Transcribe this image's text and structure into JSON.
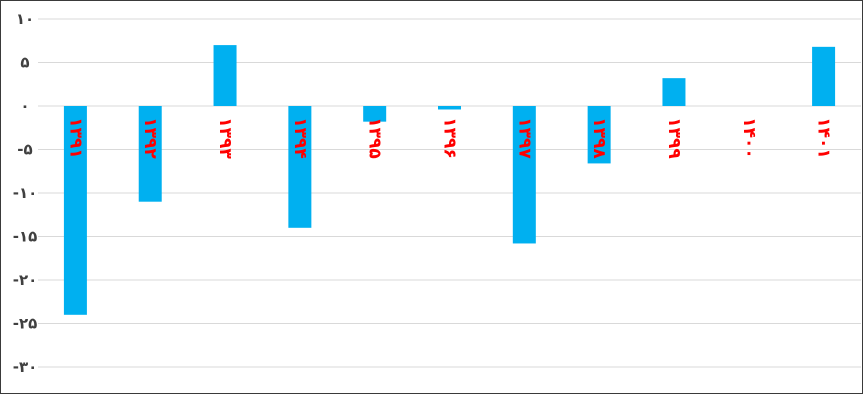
{
  "chart_data": {
    "type": "bar",
    "title": "",
    "xlabel": "",
    "ylabel": "",
    "ylim": [
      -30,
      10
    ],
    "yticks": [
      10,
      5,
      0,
      -5,
      -10,
      -15,
      -20,
      -25,
      -30
    ],
    "ytick_labels": [
      "۱۰",
      "۵",
      "۰",
      "-۵",
      "-۱۰",
      "-۱۵",
      "-۲۰",
      "-۲۵",
      "-۳۰"
    ],
    "categories": [
      "۱۳۹۱",
      "۱۳۹۲",
      "۱۳۹۳",
      "۱۳۹۴",
      "۱۳۹۵",
      "۱۳۹۶",
      "۱۳۹۷",
      "۱۳۹۸",
      "۱۳۹۹",
      "۱۴۰۰",
      "۱۴۰۱"
    ],
    "values": [
      -24,
      -11,
      7,
      -14,
      -1.8,
      -0.4,
      -15.8,
      -6.6,
      3.2,
      0,
      6.8
    ],
    "grid": true,
    "legend": "none",
    "colors": {
      "bar": "#00b0f0",
      "category_label": "#ff0000",
      "tick_label": "#404040",
      "grid": "#d9d9d9"
    }
  }
}
